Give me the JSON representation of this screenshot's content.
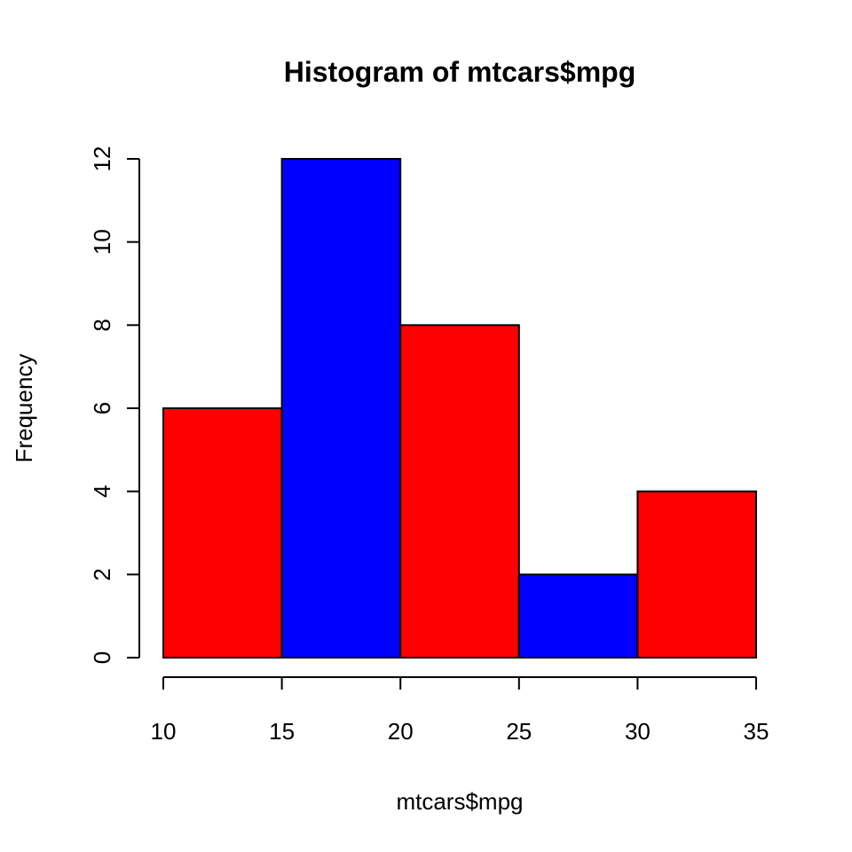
{
  "chart_data": {
    "type": "bar",
    "title": "Histogram of mtcars$mpg",
    "xlabel": "mtcars$mpg",
    "ylabel": "Frequency",
    "bins": [
      {
        "from": 10,
        "to": 15,
        "count": 6
      },
      {
        "from": 15,
        "to": 20,
        "count": 12
      },
      {
        "from": 20,
        "to": 25,
        "count": 8
      },
      {
        "from": 25,
        "to": 30,
        "count": 2
      },
      {
        "from": 30,
        "to": 35,
        "count": 4
      }
    ],
    "bar_colors": [
      "#ff0000",
      "#0000ff",
      "#ff0000",
      "#0000ff",
      "#ff0000"
    ],
    "x_ticks": [
      10,
      15,
      20,
      25,
      30,
      35
    ],
    "y_ticks": [
      0,
      2,
      4,
      6,
      8,
      10,
      12
    ],
    "xlim": [
      10,
      35
    ],
    "ylim": [
      0,
      12
    ],
    "grid": false,
    "legend": "none"
  }
}
